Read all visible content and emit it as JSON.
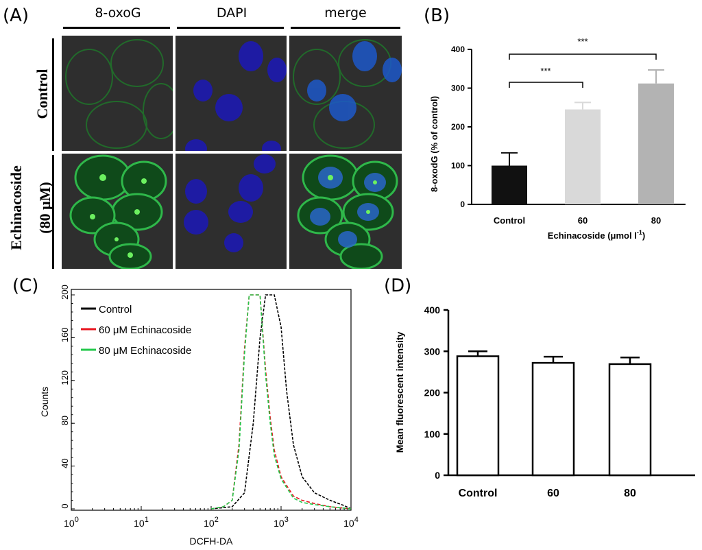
{
  "panelA": {
    "label": "(A)",
    "columns": [
      "8-oxoG",
      "DAPI",
      "merge"
    ],
    "row1_label": "Control",
    "row2_label_line1": "Echinacoside",
    "row2_label_line2": "(80 μM)"
  },
  "chart_data": [
    {
      "panel": "(B)",
      "type": "bar",
      "categories": [
        "Control",
        "60",
        "80"
      ],
      "values": [
        100,
        245,
        312
      ],
      "errors": [
        33,
        18,
        35
      ],
      "bar_colors": [
        "#111111",
        "#d9d9d9",
        "#b3b3b3"
      ],
      "xlabel": "Echinacoside  (μmol l",
      "xlabel_sup": "-1",
      "xlabel_end": ")",
      "ylabel": "8-oxodG (% of control)",
      "ylim": [
        0,
        400
      ],
      "yticks": [
        "0",
        "100",
        "200",
        "300",
        "400"
      ],
      "significance": [
        "***",
        "***"
      ]
    },
    {
      "panel": "(C)",
      "type": "line",
      "xlabel": "DCFH-DA",
      "ylabel": "Counts",
      "xscale": "log",
      "xlim": [
        1,
        10000
      ],
      "ylim": [
        0,
        200
      ],
      "yticks": [
        "0",
        "40",
        "80",
        "120",
        "160",
        "200"
      ],
      "legend_position": "top-left",
      "series": [
        {
          "name": "Control",
          "color": "#000000",
          "x": [
            100,
            200,
            300,
            400,
            500,
            600,
            700,
            800,
            1000,
            1200,
            1500,
            2000,
            3000,
            5000,
            8000,
            10000
          ],
          "y": [
            0,
            2,
            15,
            80,
            160,
            200,
            200,
            200,
            170,
            110,
            60,
            30,
            15,
            8,
            3,
            0
          ]
        },
        {
          "name": "60 μM Echinacoside",
          "color": "#e8141e",
          "x": [
            100,
            150,
            200,
            250,
            300,
            350,
            400,
            500,
            600,
            700,
            800,
            1000,
            1500,
            2000,
            3000,
            5000,
            10000
          ],
          "y": [
            0,
            2,
            8,
            60,
            150,
            200,
            200,
            200,
            130,
            85,
            55,
            30,
            12,
            8,
            5,
            2,
            0
          ]
        },
        {
          "name": "80 μM Echinacoside",
          "color": "#22c84a",
          "x": [
            100,
            150,
            200,
            250,
            300,
            350,
            400,
            500,
            600,
            700,
            800,
            1000,
            1500,
            2000,
            3000,
            5000,
            10000
          ],
          "y": [
            0,
            2,
            8,
            55,
            145,
            200,
            200,
            200,
            125,
            80,
            50,
            28,
            10,
            6,
            4,
            2,
            0
          ]
        }
      ]
    },
    {
      "panel": "(D)",
      "type": "bar",
      "categories": [
        "Control",
        "60",
        "80"
      ],
      "values": [
        288,
        272,
        269
      ],
      "errors": [
        12,
        15,
        16
      ],
      "ylabel": "Mean fluorescent intensity",
      "ylim": [
        0,
        400
      ],
      "yticks": [
        "0",
        "100",
        "200",
        "300",
        "400"
      ]
    }
  ]
}
